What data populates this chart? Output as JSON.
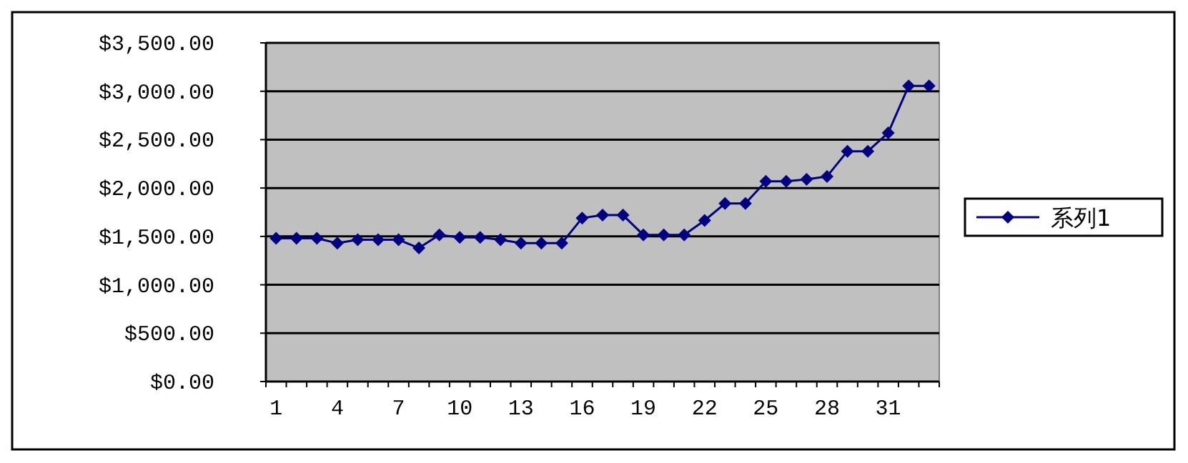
{
  "chart_data": {
    "type": "line",
    "categories": [
      "1",
      null,
      null,
      "4",
      null,
      null,
      "7",
      null,
      null,
      "10",
      null,
      null,
      "13",
      null,
      null,
      "16",
      null,
      null,
      "19",
      null,
      null,
      "22",
      null,
      null,
      "25",
      null,
      null,
      "28",
      null,
      null,
      "31",
      null,
      null
    ],
    "series": [
      {
        "name": "系列1",
        "color": "#000080",
        "values": [
          1480,
          1480,
          1480,
          1430,
          1465,
          1465,
          1465,
          1380,
          1515,
          1490,
          1490,
          1465,
          1430,
          1430,
          1430,
          1690,
          1720,
          1720,
          1515,
          1515,
          1515,
          1665,
          1840,
          1840,
          2070,
          2070,
          2090,
          2120,
          2380,
          2380,
          2570,
          3055,
          3055
        ]
      }
    ],
    "ylim": [
      0,
      3500
    ],
    "yticks": [
      {
        "value": 0,
        "label": "$0.00"
      },
      {
        "value": 500,
        "label": "$500.00"
      },
      {
        "value": 1000,
        "label": "$1,000.00"
      },
      {
        "value": 1500,
        "label": "$1,500.00"
      },
      {
        "value": 2000,
        "label": "$2,000.00"
      },
      {
        "value": 2500,
        "label": "$2,500.00"
      },
      {
        "value": 3000,
        "label": "$3,000.00"
      },
      {
        "value": 3500,
        "label": "$3,500.00"
      }
    ],
    "grid": "y",
    "legend": "right",
    "marker": "diamond",
    "line_style": "solid"
  }
}
